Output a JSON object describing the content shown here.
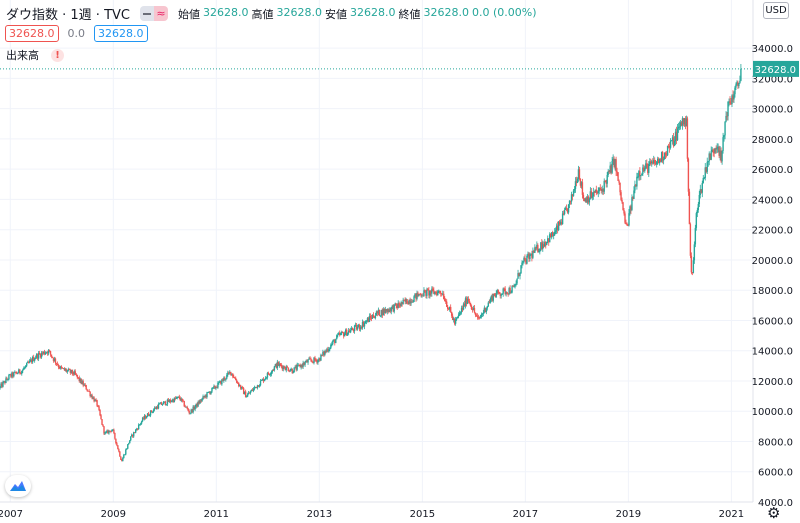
{
  "header": {
    "symbol": "ダウ指数 · 1週 · TVC",
    "ohlc": [
      {
        "label": "始値",
        "value": "32628.0"
      },
      {
        "label": "高値",
        "value": "32628.0"
      },
      {
        "label": "安値",
        "value": "32628.0"
      },
      {
        "label": "終値",
        "value": "32628.0"
      }
    ],
    "change": "0.0 (0.00%)",
    "bid": "32628.0",
    "spread": "0.0",
    "ask": "32628.0",
    "volume_label": "出来高",
    "volume_warning": "!",
    "currency": "USD"
  },
  "colors": {
    "up": "#26a69a",
    "down": "#ef5350",
    "grid": "#f0f3fa",
    "price_line": "#26a69a"
  },
  "icons": {
    "logo": "tradingview-logo-icon",
    "settings": "gear-icon",
    "warning": "warning-icon"
  },
  "chart_data": {
    "type": "candlestick",
    "frequency": "weekly",
    "current_price": "32628.0",
    "current_price_value": 32628,
    "ylim": [
      4000,
      35200
    ],
    "y_ticks": [
      "4000.0",
      "6000.0",
      "8000.0",
      "10000.0",
      "12000.0",
      "14000.0",
      "16000.0",
      "18000.0",
      "20000.0",
      "22000.0",
      "24000.0",
      "26000.0",
      "28000.0",
      "30000.0",
      "32000.0",
      "34000.0"
    ],
    "y_tick_values": [
      4000,
      6000,
      8000,
      10000,
      12000,
      14000,
      16000,
      18000,
      20000,
      22000,
      24000,
      26000,
      28000,
      30000,
      32000,
      34000
    ],
    "x_ticks": [
      "2007",
      "2009",
      "2011",
      "2013",
      "2015",
      "2017",
      "2019",
      "2021"
    ],
    "x_tick_years": [
      2007,
      2009,
      2011,
      2013,
      2015,
      2017,
      2019,
      2021
    ],
    "x_range_years": [
      2006.8,
      2021.4
    ],
    "path_keypoints": [
      [
        2006.8,
        11500
      ],
      [
        2007.0,
        12300
      ],
      [
        2007.25,
        12700
      ],
      [
        2007.5,
        13600
      ],
      [
        2007.75,
        14000
      ],
      [
        2008.0,
        12800
      ],
      [
        2008.25,
        12500
      ],
      [
        2008.5,
        11500
      ],
      [
        2008.7,
        10500
      ],
      [
        2008.85,
        8500
      ],
      [
        2009.0,
        8800
      ],
      [
        2009.18,
        6700
      ],
      [
        2009.35,
        8200
      ],
      [
        2009.6,
        9500
      ],
      [
        2009.9,
        10400
      ],
      [
        2010.3,
        10900
      ],
      [
        2010.5,
        9900
      ],
      [
        2010.8,
        11000
      ],
      [
        2011.1,
        11900
      ],
      [
        2011.3,
        12600
      ],
      [
        2011.6,
        11000
      ],
      [
        2011.9,
        12000
      ],
      [
        2012.2,
        13100
      ],
      [
        2012.5,
        12700
      ],
      [
        2012.8,
        13300
      ],
      [
        2013.0,
        13400
      ],
      [
        2013.4,
        15000
      ],
      [
        2013.8,
        15600
      ],
      [
        2014.1,
        16400
      ],
      [
        2014.5,
        16900
      ],
      [
        2014.8,
        17400
      ],
      [
        2015.0,
        17800
      ],
      [
        2015.4,
        17900
      ],
      [
        2015.65,
        15800
      ],
      [
        2015.9,
        17500
      ],
      [
        2016.1,
        16000
      ],
      [
        2016.4,
        17700
      ],
      [
        2016.8,
        18100
      ],
      [
        2016.95,
        19700
      ],
      [
        2017.3,
        20900
      ],
      [
        2017.6,
        21800
      ],
      [
        2017.9,
        23800
      ],
      [
        2018.05,
        26000
      ],
      [
        2018.15,
        24000
      ],
      [
        2018.5,
        24600
      ],
      [
        2018.75,
        26600
      ],
      [
        2018.98,
        22000
      ],
      [
        2019.2,
        25800
      ],
      [
        2019.6,
        26500
      ],
      [
        2019.9,
        27900
      ],
      [
        2020.08,
        29300
      ],
      [
        2020.15,
        28900
      ],
      [
        2020.22,
        20500
      ],
      [
        2020.25,
        18500
      ],
      [
        2020.35,
        23500
      ],
      [
        2020.55,
        26500
      ],
      [
        2020.75,
        27800
      ],
      [
        2020.82,
        26500
      ],
      [
        2020.92,
        29800
      ],
      [
        2021.05,
        30900
      ],
      [
        2021.15,
        31500
      ],
      [
        2021.2,
        32628
      ]
    ]
  }
}
